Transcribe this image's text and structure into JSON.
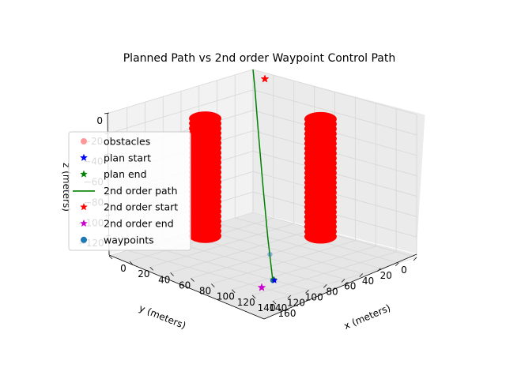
{
  "chart_data": {
    "type": "3d-scatter-line",
    "title": "Planned Path vs 2nd order Waypoint Control Path",
    "xlabel": "x (meters)",
    "ylabel": "y (meters)",
    "zlabel": "z (meters)",
    "xlim": [
      0,
      160
    ],
    "ylim": [
      0,
      160
    ],
    "zlim": [
      -140,
      0
    ],
    "x_ticks": [
      0,
      20,
      40,
      60,
      80,
      100,
      120,
      140,
      160
    ],
    "y_ticks": [
      0,
      20,
      40,
      60,
      80,
      100,
      120,
      140
    ],
    "z_ticks": [
      0,
      -20,
      -40,
      -60,
      -80,
      -100,
      -120
    ],
    "x_tick_labels": [
      "0",
      "20",
      "40",
      "60",
      "80",
      "100",
      "120",
      "140",
      "160"
    ],
    "y_tick_labels": [
      "0",
      "20",
      "40",
      "60",
      "80",
      "100",
      "120",
      "140"
    ],
    "z_tick_labels": [
      "0",
      "−20",
      "−40",
      "−60",
      "−80",
      "−100",
      "−120"
    ],
    "grid": true,
    "legend_placement": "center-left",
    "legend": [
      {
        "label": "obstacles",
        "marker": "circle",
        "color": "#ff9999",
        "line": false
      },
      {
        "label": "plan start",
        "marker": "star",
        "color": "#0000ff",
        "line": false
      },
      {
        "label": "plan end",
        "marker": "star",
        "color": "#008000",
        "line": false
      },
      {
        "label": "2nd order path",
        "marker": "none",
        "color": "#008000",
        "line": true
      },
      {
        "label": "2nd order start",
        "marker": "star",
        "color": "#ff0000",
        "line": false
      },
      {
        "label": "2nd order end",
        "marker": "star",
        "color": "#cc00cc",
        "line": false
      },
      {
        "label": "waypoints",
        "marker": "circle",
        "color": "#1f77b4",
        "line": false
      }
    ],
    "obstacles": [
      {
        "x": 50,
        "y": 110,
        "z_min": -120,
        "z_max": -5,
        "radius": 10
      },
      {
        "x": 110,
        "y": 50,
        "z_min": -120,
        "z_max": -5,
        "radius": 10
      }
    ],
    "path_2nd_order": [
      {
        "x": 0,
        "y": 0,
        "z": 0
      },
      {
        "x": 5,
        "y": 5,
        "z": -3
      },
      {
        "x": 15,
        "y": 15,
        "z": -10
      },
      {
        "x": 40,
        "y": 40,
        "z": -35
      },
      {
        "x": 80,
        "y": 80,
        "z": -70
      },
      {
        "x": 120,
        "y": 120,
        "z": -100
      },
      {
        "x": 150,
        "y": 150,
        "z": -115
      },
      {
        "x": 160,
        "y": 160,
        "z": -120
      }
    ],
    "start_2nd_order": {
      "x": 0,
      "y": 0,
      "z": 0
    },
    "end_2nd_order": {
      "x": 160,
      "y": 160,
      "z": -120
    },
    "plan_start": {
      "x": 160,
      "y": 160,
      "z": -120
    },
    "plan_end": {
      "x": 160,
      "y": 160,
      "z": -120
    },
    "waypoints": [
      {
        "x": 160,
        "y": 160,
        "z": -120
      },
      {
        "x": 160,
        "y": 160,
        "z": -120
      },
      {
        "x": 150,
        "y": 150,
        "z": -120
      }
    ],
    "colors": {
      "obstacle": "#ff0000",
      "path": "#008000",
      "start_2nd_order": "#ff0000",
      "end_2nd_order": "#cc00cc",
      "plan_start": "#0000ff",
      "plan_end": "#008000",
      "waypoint": "#1f77b4"
    }
  }
}
